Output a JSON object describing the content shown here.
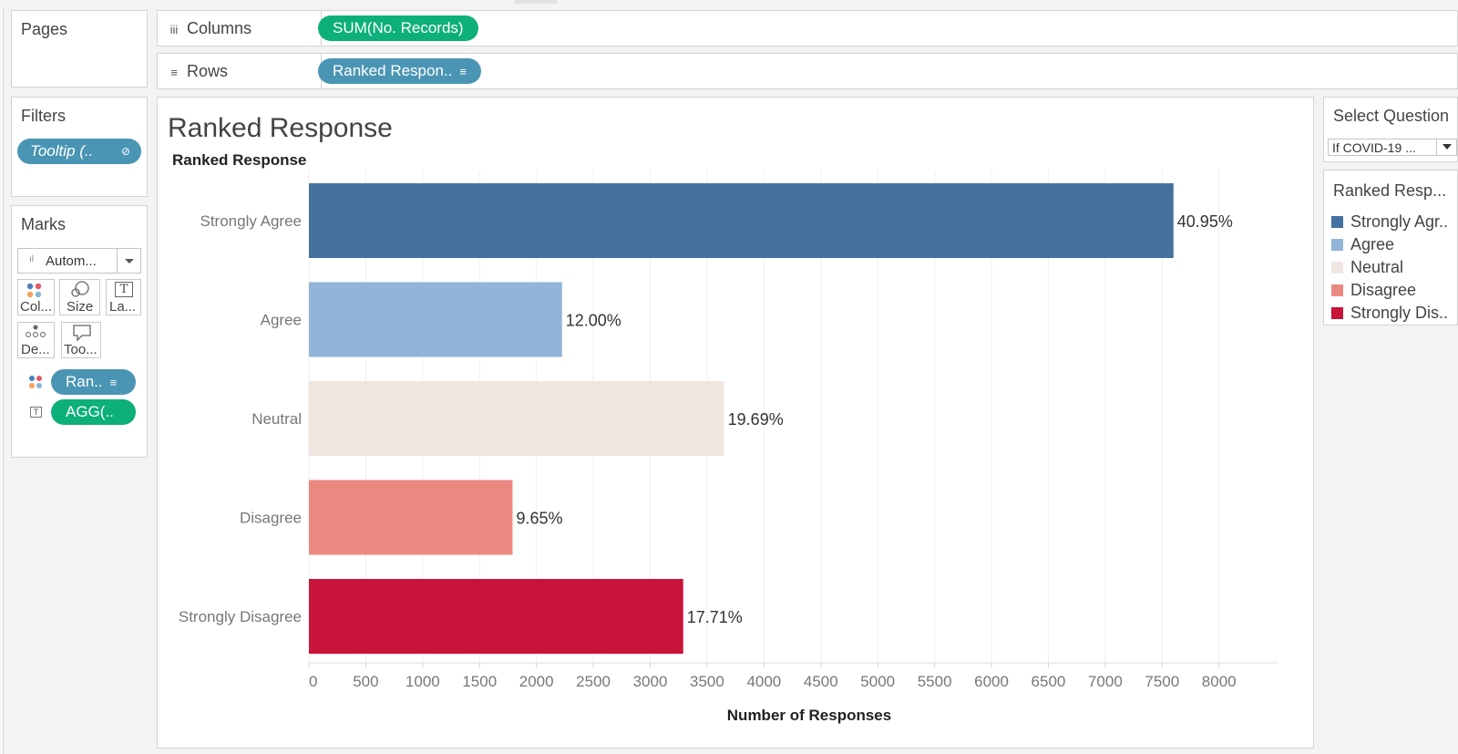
{
  "shelves": {
    "pages_label": "Pages",
    "columns_label": "Columns",
    "columns_icon": "iii",
    "columns_pill": "SUM(No. Records)",
    "rows_label": "Rows",
    "rows_icon": "≡",
    "rows_pill": "Ranked Respon..",
    "rows_sort_icon": "≡"
  },
  "filters": {
    "title": "Filters",
    "pill": "Tooltip (..",
    "link_icon": "⊘"
  },
  "marks": {
    "title": "Marks",
    "type_value": "Autom...",
    "type_icon": "ıl",
    "buttons": [
      "Col...",
      "Size",
      "La...",
      "De...",
      "Too..."
    ],
    "label_icon_glyph": "T",
    "pill_color": "Ran..",
    "pill_text": "AGG(.."
  },
  "sheet": {
    "title": "Ranked Response"
  },
  "filter_card": {
    "title": "Select Question",
    "value": "If COVID-19 ..."
  },
  "legend": {
    "title": "Ranked Resp...",
    "items": [
      {
        "label": "Strongly Agr..",
        "color": "#4571a0"
      },
      {
        "label": "Agree",
        "color": "#92b4d9"
      },
      {
        "label": "Neutral",
        "color": "#f0e6e1"
      },
      {
        "label": "Disagree",
        "color": "#eb8882"
      },
      {
        "label": "Strongly Dis..",
        "color": "#c8133b"
      }
    ]
  },
  "chart_data": {
    "type": "bar",
    "orientation": "horizontal",
    "title": "Ranked Response",
    "row_header": "Ranked Response",
    "xlabel": "Number of Responses",
    "xlim": [
      0,
      8500
    ],
    "xticks": [
      0,
      500,
      1000,
      1500,
      2000,
      2500,
      3000,
      3500,
      4000,
      4500,
      5000,
      5500,
      6000,
      6500,
      7000,
      7500,
      8000
    ],
    "grid": true,
    "categories": [
      "Strongly Agree",
      "Agree",
      "Neutral",
      "Disagree",
      "Strongly Disagree"
    ],
    "values": [
      7600,
      2225,
      3650,
      1790,
      3290
    ],
    "labels": [
      "40.95%",
      "12.00%",
      "19.69%",
      "9.65%",
      "17.71%"
    ],
    "colors": [
      "#4571a0",
      "#92b4d9",
      "#f0e6e1",
      "#eb8882",
      "#c8133b"
    ]
  }
}
